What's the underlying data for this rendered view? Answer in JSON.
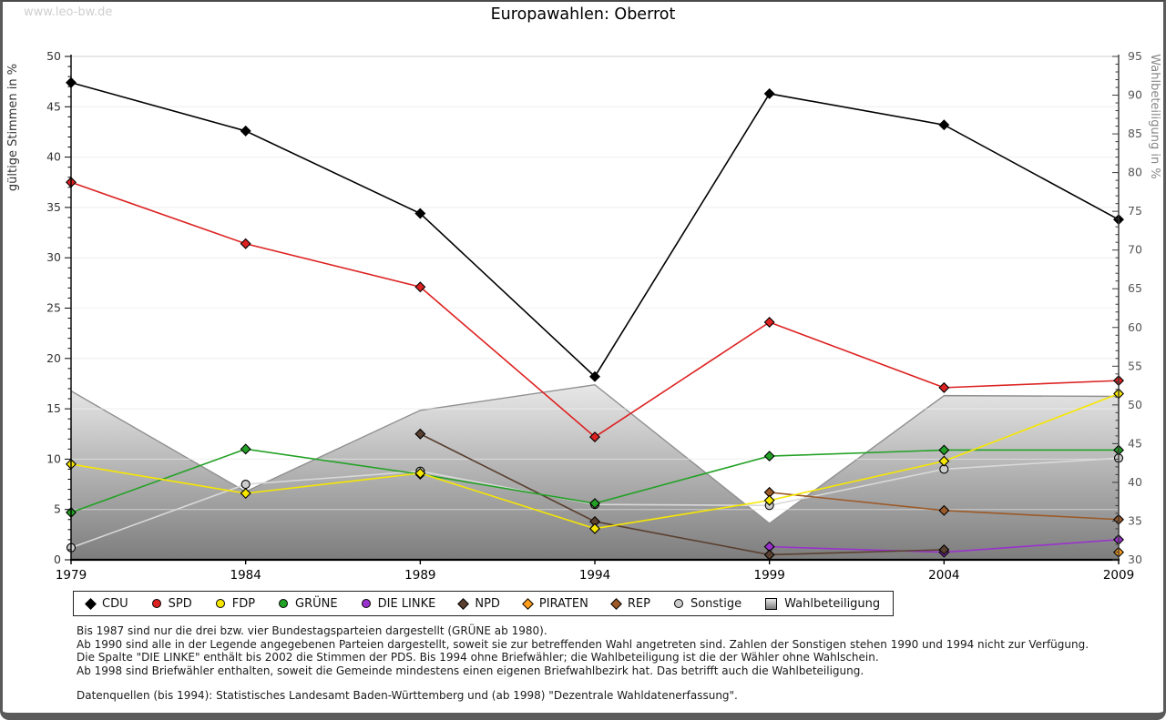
{
  "page": {
    "watermark": "www.leo-bw.de",
    "title": "Europawahlen: Oberrot"
  },
  "axes": {
    "left_label": "gültige Stimmen in %",
    "right_label": "Wahlbeteiligung in %",
    "left_ticks": [
      0,
      5,
      10,
      15,
      20,
      25,
      30,
      35,
      40,
      45,
      50
    ],
    "right_ticks": [
      30,
      35,
      40,
      45,
      50,
      55,
      60,
      65,
      70,
      75,
      80,
      85,
      90,
      95
    ]
  },
  "chart_data": {
    "type": "line",
    "title": "Europawahlen: Oberrot",
    "x": [
      1979,
      1984,
      1989,
      1994,
      1999,
      2004,
      2009
    ],
    "xlabel": "",
    "ylabel_left": "gültige Stimmen in %",
    "ylabel_right": "Wahlbeteiligung in %",
    "ylim_left": [
      0,
      50
    ],
    "ylim_right": [
      30,
      95
    ],
    "grid": true,
    "legend_position": "bottom",
    "series": [
      {
        "name": "CDU",
        "axis": "left",
        "marker": "diamond",
        "color": "#000000",
        "values": [
          47.4,
          42.6,
          34.4,
          18.2,
          46.3,
          43.2,
          33.8
        ]
      },
      {
        "name": "SPD",
        "axis": "left",
        "marker": "diamond",
        "color": "#dd2222",
        "values": [
          37.5,
          31.4,
          27.1,
          12.2,
          23.6,
          17.1,
          17.8
        ]
      },
      {
        "name": "FDP",
        "axis": "left",
        "marker": "diamond",
        "color": "#f7e700",
        "values": [
          9.5,
          6.6,
          8.6,
          3.1,
          5.9,
          9.8,
          16.5
        ]
      },
      {
        "name": "GRÜNE",
        "axis": "left",
        "marker": "diamond",
        "color": "#23a126",
        "values": [
          4.7,
          11.0,
          8.5,
          5.6,
          10.3,
          10.9,
          10.9
        ]
      },
      {
        "name": "DIE LINKE",
        "axis": "left",
        "marker": "diamond",
        "color": "#9932cc",
        "values": [
          null,
          null,
          null,
          null,
          1.3,
          0.75,
          2.0
        ]
      },
      {
        "name": "NPD",
        "axis": "left",
        "marker": "diamond",
        "color": "#5a4030",
        "values": [
          null,
          null,
          12.5,
          3.8,
          0.5,
          1.0,
          null
        ]
      },
      {
        "name": "PIRATEN",
        "axis": "left",
        "marker": "diamond",
        "color": "#ff9e1b",
        "values": [
          null,
          null,
          null,
          null,
          null,
          null,
          0.75
        ]
      },
      {
        "name": "REP",
        "axis": "left",
        "marker": "diamond",
        "color": "#9c5a28",
        "values": [
          null,
          null,
          null,
          null,
          6.7,
          4.9,
          4.0
        ]
      },
      {
        "name": "Sonstige",
        "axis": "left",
        "marker": "circle",
        "color": "#cccccc",
        "line_color": "#d9d9d9",
        "values": [
          1.2,
          7.5,
          8.8,
          5.5,
          5.4,
          9.0,
          10.1
        ]
      },
      {
        "name": "Wahlbeteiligung",
        "axis": "right",
        "type": "area",
        "stroke": "#909090",
        "gradient": [
          "#e8e8e8",
          "#7d7d7d"
        ],
        "values": [
          51.8,
          38.8,
          49.3,
          52.6,
          34.7,
          51.2,
          51.1
        ]
      }
    ]
  },
  "legend": {
    "items": [
      {
        "label": "CDU",
        "shape": "diamond",
        "color": "#000000"
      },
      {
        "label": "SPD",
        "shape": "circle",
        "color": "#dd2222"
      },
      {
        "label": "FDP",
        "shape": "circle",
        "color": "#f7e700"
      },
      {
        "label": "GRÜNE",
        "shape": "circle",
        "color": "#23a126"
      },
      {
        "label": "DIE LINKE",
        "shape": "circle",
        "color": "#9932cc"
      },
      {
        "label": "NPD",
        "shape": "diamond",
        "color": "#5a4030"
      },
      {
        "label": "PIRATEN",
        "shape": "diamond",
        "color": "#ff9e1b"
      },
      {
        "label": "REP",
        "shape": "diamond",
        "color": "#9c5a28"
      },
      {
        "label": "Sonstige",
        "shape": "circle",
        "color": "#cccccc"
      },
      {
        "label": "Wahlbeteiligung",
        "shape": "square",
        "color": "#c0c0c0"
      }
    ]
  },
  "footnotes": {
    "lines": [
      "Bis 1987 sind nur die drei bzw. vier Bundestagsparteien dargestellt (GRÜNE ab 1980).",
      "Ab 1990 sind alle in der Legende angegebenen Parteien dargestellt, soweit sie zur betreffenden Wahl angetreten sind. Zahlen der Sonstigen stehen 1990 und 1994 nicht zur Verfügung.",
      "Die Spalte \"DIE LINKE\" enthält bis 2002 die Stimmen der PDS. Bis 1994 ohne Briefwähler; die Wahlbeteiligung ist die der Wähler ohne Wahlschein.",
      "Ab 1998 sind Briefwähler enthalten, soweit die Gemeinde mindestens einen eigenen Briefwahlbezirk hat. Das betrifft auch die Wahlbeteiligung."
    ],
    "source": "Datenquellen (bis 1994): Statistisches Landesamt Baden-Württemberg und (ab 1998) \"Dezentrale Wahldatenerfassung\"."
  }
}
